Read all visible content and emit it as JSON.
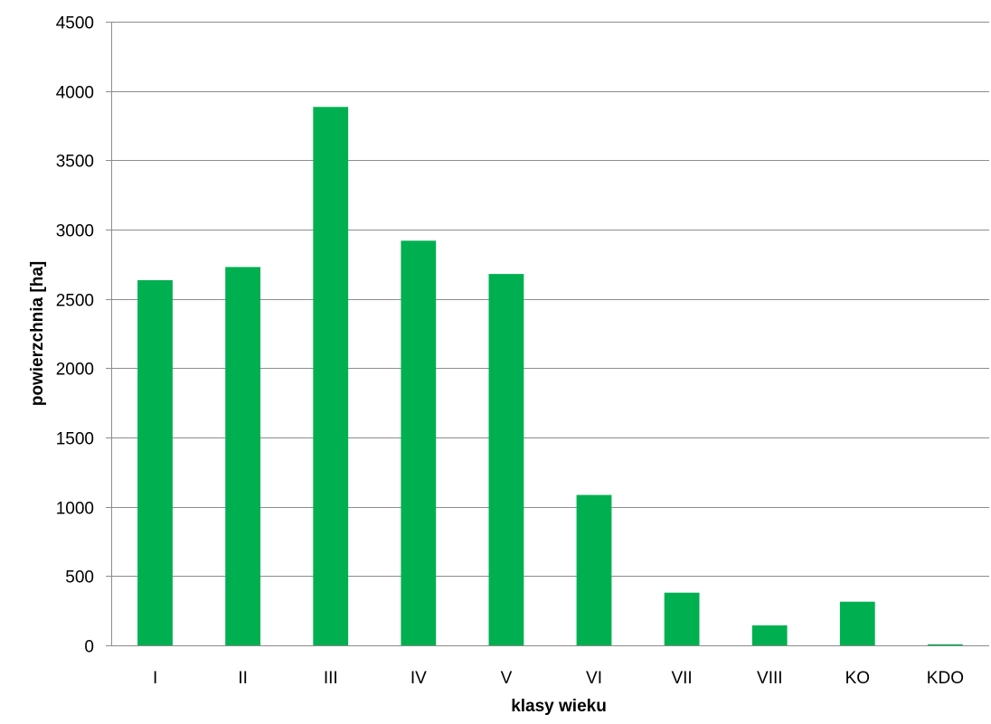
{
  "chart_data": {
    "type": "bar",
    "title": "",
    "xlabel": "klasy wieku",
    "ylabel": "powierzchnia [ha]",
    "categories": [
      "I",
      "II",
      "III",
      "IV",
      "V",
      "VI",
      "VII",
      "VIII",
      "KO",
      "KDO"
    ],
    "values": [
      2635,
      2730,
      3885,
      2920,
      2680,
      1085,
      380,
      145,
      315,
      8
    ],
    "ylim": [
      0,
      4500
    ],
    "yticks": [
      0,
      500,
      1000,
      1500,
      2000,
      2500,
      3000,
      3500,
      4000,
      4500
    ],
    "grid": true,
    "legend": "none",
    "bar_color": "#00b050"
  }
}
